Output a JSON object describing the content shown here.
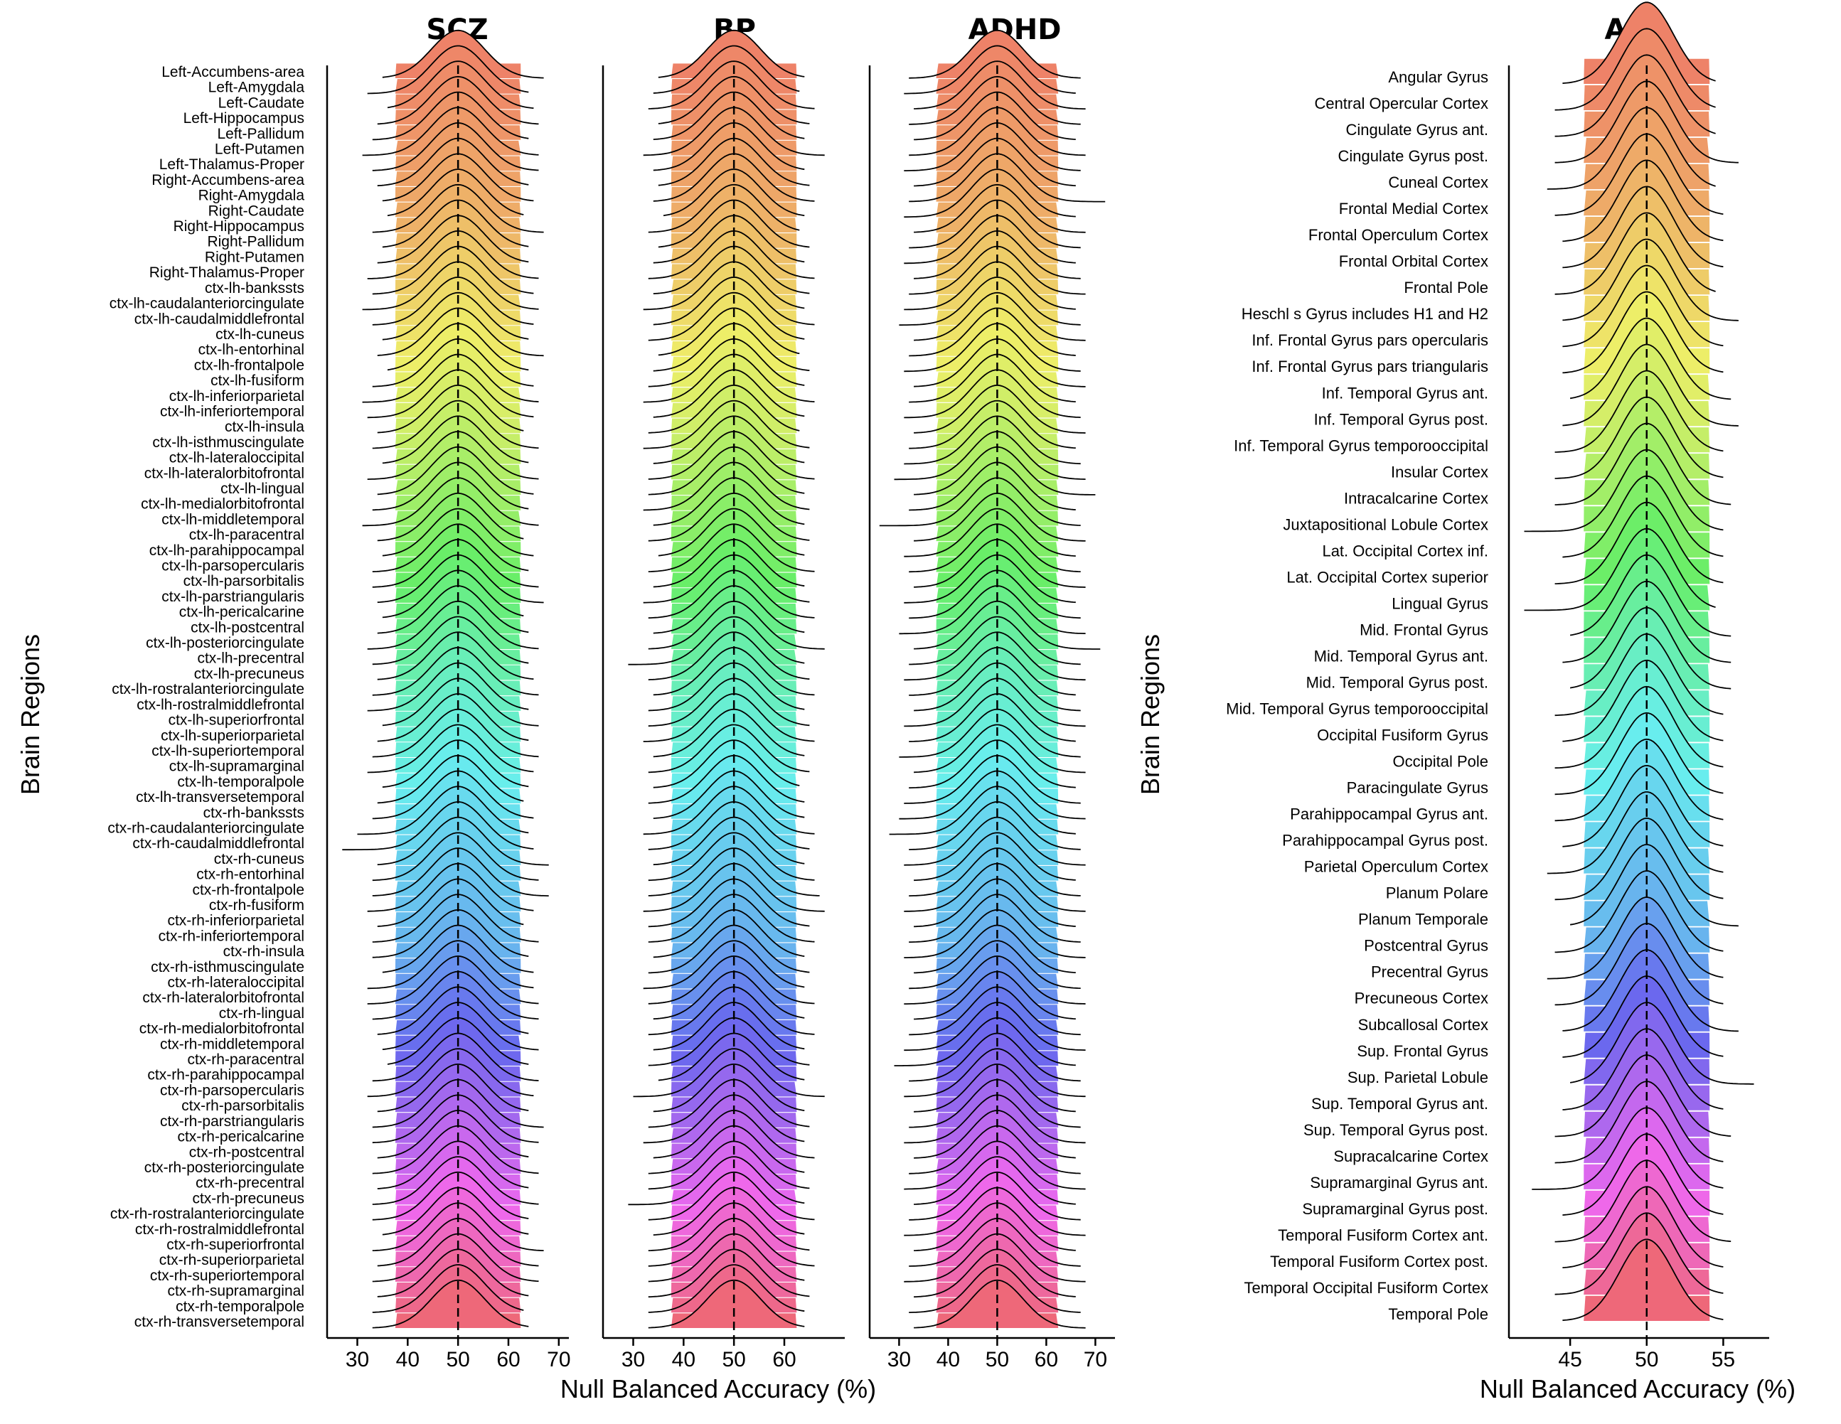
{
  "chart_data": [
    {
      "type": "ridgeline",
      "title": "SCZ",
      "xlabel": "Null Balanced Accuracy (%)",
      "ylabel": "Brain Regions",
      "xlim": [
        24,
        72
      ],
      "xticks": [
        30,
        40,
        50,
        60,
        70
      ],
      "mean_line": 50,
      "categories": [
        "Left-Accumbens-area",
        "Left-Amygdala",
        "Left-Caudate",
        "Left-Hippocampus",
        "Left-Pallidum",
        "Left-Putamen",
        "Left-Thalamus-Proper",
        "Right-Accumbens-area",
        "Right-Amygdala",
        "Right-Caudate",
        "Right-Hippocampus",
        "Right-Pallidum",
        "Right-Putamen",
        "Right-Thalamus-Proper",
        "ctx-lh-bankssts",
        "ctx-lh-caudalanteriorcingulate",
        "ctx-lh-caudalmiddlefrontal",
        "ctx-lh-cuneus",
        "ctx-lh-entorhinal",
        "ctx-lh-frontalpole",
        "ctx-lh-fusiform",
        "ctx-lh-inferiorparietal",
        "ctx-lh-inferiortemporal",
        "ctx-lh-insula",
        "ctx-lh-isthmuscingulate",
        "ctx-lh-lateraloccipital",
        "ctx-lh-lateralorbitofrontal",
        "ctx-lh-lingual",
        "ctx-lh-medialorbitofrontal",
        "ctx-lh-middletemporal",
        "ctx-lh-paracentral",
        "ctx-lh-parahippocampal",
        "ctx-lh-parsopercularis",
        "ctx-lh-parsorbitalis",
        "ctx-lh-parstriangularis",
        "ctx-lh-pericalcarine",
        "ctx-lh-postcentral",
        "ctx-lh-posteriorcingulate",
        "ctx-lh-precentral",
        "ctx-lh-precuneus",
        "ctx-lh-rostralanteriorcingulate",
        "ctx-lh-rostralmiddlefrontal",
        "ctx-lh-superiorfrontal",
        "ctx-lh-superiorparietal",
        "ctx-lh-superiortemporal",
        "ctx-lh-supramarginal",
        "ctx-lh-temporalpole",
        "ctx-lh-transversetemporal",
        "ctx-rh-bankssts",
        "ctx-rh-caudalanteriorcingulate",
        "ctx-rh-caudalmiddlefrontal",
        "ctx-rh-cuneus",
        "ctx-rh-entorhinal",
        "ctx-rh-frontalpole",
        "ctx-rh-fusiform",
        "ctx-rh-inferiorparietal",
        "ctx-rh-inferiortemporal",
        "ctx-rh-insula",
        "ctx-rh-isthmuscingulate",
        "ctx-rh-lateraloccipital",
        "ctx-rh-lateralorbitofrontal",
        "ctx-rh-lingual",
        "ctx-rh-medialorbitofrontal",
        "ctx-rh-middletemporal",
        "ctx-rh-paracentral",
        "ctx-rh-parahippocampal",
        "ctx-rh-parsopercularis",
        "ctx-rh-parsorbitalis",
        "ctx-rh-parstriangularis",
        "ctx-rh-pericalcarine",
        "ctx-rh-postcentral",
        "ctx-rh-posteriorcingulate",
        "ctx-rh-precentral",
        "ctx-rh-precuneus",
        "ctx-rh-rostralanteriorcingulate",
        "ctx-rh-rostralmiddlefrontal",
        "ctx-rh-superiorfrontal",
        "ctx-rh-superiorparietal",
        "ctx-rh-superiortemporal",
        "ctx-rh-supramarginal",
        "ctx-rh-temporalpole",
        "ctx-rh-transversetemporal"
      ],
      "center": 50,
      "sd": 5.3,
      "range_min": [
        35,
        32,
        36,
        34,
        33,
        31,
        33,
        34,
        35,
        36,
        33,
        35,
        34,
        32,
        33,
        31,
        33,
        35,
        34,
        36,
        33,
        31,
        32,
        34,
        33,
        35,
        32,
        34,
        33,
        31,
        34,
        35,
        33,
        33,
        34,
        35,
        34,
        32,
        33,
        34,
        33,
        32,
        35,
        34,
        33,
        32,
        35,
        34,
        33,
        30,
        27,
        34,
        33,
        33,
        32,
        34,
        33,
        33,
        35,
        32,
        32,
        33,
        34,
        35,
        36,
        33,
        32,
        34,
        33,
        33,
        34,
        33,
        34,
        33,
        33,
        35,
        33,
        34,
        33,
        34,
        33,
        33
      ],
      "range_max": [
        67,
        64,
        65,
        66,
        64,
        66,
        66,
        64,
        65,
        63,
        67,
        64,
        64,
        66,
        65,
        66,
        65,
        64,
        67,
        64,
        65,
        66,
        65,
        63,
        66,
        64,
        66,
        65,
        64,
        66,
        63,
        65,
        64,
        66,
        67,
        63,
        64,
        66,
        64,
        65,
        66,
        64,
        66,
        64,
        66,
        65,
        64,
        63,
        65,
        64,
        65,
        68,
        66,
        68,
        65,
        63,
        66,
        64,
        65,
        65,
        66,
        66,
        64,
        66,
        64,
        66,
        65,
        64,
        67,
        66,
        64,
        66,
        64,
        66,
        64,
        64,
        67,
        66,
        66,
        64,
        63,
        64
      ]
    },
    {
      "type": "ridgeline",
      "title": "BP",
      "xlabel": "",
      "ylabel": "",
      "xlim": [
        24,
        72
      ],
      "xticks": [
        30,
        40,
        50,
        60
      ],
      "mean_line": 50,
      "categories": [
        "Left-Accumbens-area",
        "Left-Amygdala",
        "Left-Caudate",
        "Left-Hippocampus",
        "Left-Pallidum",
        "Left-Putamen",
        "Left-Thalamus-Proper",
        "Right-Accumbens-area",
        "Right-Amygdala",
        "Right-Caudate",
        "Right-Hippocampus",
        "Right-Pallidum",
        "Right-Putamen",
        "Right-Thalamus-Proper",
        "ctx-lh-bankssts",
        "ctx-lh-caudalanteriorcingulate",
        "ctx-lh-caudalmiddlefrontal",
        "ctx-lh-cuneus",
        "ctx-lh-entorhinal",
        "ctx-lh-frontalpole",
        "ctx-lh-fusiform",
        "ctx-lh-inferiorparietal",
        "ctx-lh-inferiortemporal",
        "ctx-lh-insula",
        "ctx-lh-isthmuscingulate",
        "ctx-lh-lateraloccipital",
        "ctx-lh-lateralorbitofrontal",
        "ctx-lh-lingual",
        "ctx-lh-medialorbitofrontal",
        "ctx-lh-middletemporal",
        "ctx-lh-paracentral",
        "ctx-lh-parahippocampal",
        "ctx-lh-parsopercularis",
        "ctx-lh-parsorbitalis",
        "ctx-lh-parstriangularis",
        "ctx-lh-pericalcarine",
        "ctx-lh-postcentral",
        "ctx-lh-posteriorcingulate",
        "ctx-lh-precentral",
        "ctx-lh-precuneus",
        "ctx-lh-rostralanteriorcingulate",
        "ctx-lh-rostralmiddlefrontal",
        "ctx-lh-superiorfrontal",
        "ctx-lh-superiorparietal",
        "ctx-lh-superiortemporal",
        "ctx-lh-supramarginal",
        "ctx-lh-temporalpole",
        "ctx-lh-transversetemporal",
        "ctx-rh-bankssts",
        "ctx-rh-caudalanteriorcingulate",
        "ctx-rh-caudalmiddlefrontal",
        "ctx-rh-cuneus",
        "ctx-rh-entorhinal",
        "ctx-rh-frontalpole",
        "ctx-rh-fusiform",
        "ctx-rh-inferiorparietal",
        "ctx-rh-inferiortemporal",
        "ctx-rh-insula",
        "ctx-rh-isthmuscingulate",
        "ctx-rh-lateraloccipital",
        "ctx-rh-lateralorbitofrontal",
        "ctx-rh-lingual",
        "ctx-rh-medialorbitofrontal",
        "ctx-rh-middletemporal",
        "ctx-rh-paracentral",
        "ctx-rh-parahippocampal",
        "ctx-rh-parsopercularis",
        "ctx-rh-parsorbitalis",
        "ctx-rh-parstriangularis",
        "ctx-rh-pericalcarine",
        "ctx-rh-postcentral",
        "ctx-rh-posteriorcingulate",
        "ctx-rh-precentral",
        "ctx-rh-precuneus",
        "ctx-rh-rostralanteriorcingulate",
        "ctx-rh-rostralmiddlefrontal",
        "ctx-rh-superiorfrontal",
        "ctx-rh-superiorparietal",
        "ctx-rh-superiortemporal",
        "ctx-rh-supramarginal",
        "ctx-rh-temporalpole",
        "ctx-rh-transversetemporal"
      ],
      "center": 50,
      "sd": 5.3,
      "range_min": [
        35,
        34,
        33,
        35,
        34,
        32,
        34,
        35,
        34,
        36,
        33,
        35,
        34,
        33,
        34,
        32,
        34,
        33,
        35,
        34,
        33,
        32,
        34,
        33,
        32,
        34,
        33,
        33,
        32,
        34,
        33,
        35,
        33,
        34,
        32,
        33,
        34,
        33,
        29,
        33,
        34,
        33,
        33,
        32,
        34,
        33,
        34,
        33,
        34,
        32,
        33,
        34,
        33,
        33,
        32,
        33,
        33,
        34,
        33,
        32,
        33,
        34,
        33,
        34,
        33,
        35,
        30,
        34,
        33,
        32,
        34,
        33,
        33,
        29,
        33,
        34,
        33,
        33,
        33,
        33,
        33,
        33
      ],
      "range_max": [
        64,
        63,
        66,
        65,
        64,
        68,
        64,
        65,
        66,
        64,
        63,
        65,
        64,
        66,
        65,
        64,
        66,
        64,
        63,
        65,
        64,
        66,
        64,
        63,
        65,
        64,
        66,
        64,
        65,
        64,
        65,
        64,
        66,
        64,
        65,
        66,
        64,
        68,
        64,
        65,
        66,
        64,
        65,
        66,
        64,
        65,
        63,
        64,
        64,
        66,
        65,
        64,
        66,
        67,
        68,
        65,
        66,
        64,
        65,
        64,
        66,
        64,
        66,
        64,
        65,
        64,
        68,
        64,
        65,
        64,
        66,
        64,
        65,
        64,
        66,
        64,
        65,
        66,
        64,
        65,
        64,
        64
      ]
    },
    {
      "type": "ridgeline",
      "title": "ADHD",
      "xlabel": "",
      "ylabel": "",
      "xlim": [
        24,
        74
      ],
      "xticks": [
        30,
        40,
        50,
        60,
        70
      ],
      "mean_line": 50,
      "categories": [
        "Left-Accumbens-area",
        "Left-Amygdala",
        "Left-Caudate",
        "Left-Hippocampus",
        "Left-Pallidum",
        "Left-Putamen",
        "Left-Thalamus-Proper",
        "Right-Accumbens-area",
        "Right-Amygdala",
        "Right-Caudate",
        "Right-Hippocampus",
        "Right-Pallidum",
        "Right-Putamen",
        "Right-Thalamus-Proper",
        "ctx-lh-bankssts",
        "ctx-lh-caudalanteriorcingulate",
        "ctx-lh-caudalmiddlefrontal",
        "ctx-lh-cuneus",
        "ctx-lh-entorhinal",
        "ctx-lh-frontalpole",
        "ctx-lh-fusiform",
        "ctx-lh-inferiorparietal",
        "ctx-lh-inferiortemporal",
        "ctx-lh-insula",
        "ctx-lh-isthmuscingulate",
        "ctx-lh-lateraloccipital",
        "ctx-lh-lateralorbitofrontal",
        "ctx-lh-lingual",
        "ctx-lh-medialorbitofrontal",
        "ctx-lh-middletemporal",
        "ctx-lh-paracentral",
        "ctx-lh-parahippocampal",
        "ctx-lh-parsopercularis",
        "ctx-lh-parsorbitalis",
        "ctx-lh-parstriangularis",
        "ctx-lh-pericalcarine",
        "ctx-lh-postcentral",
        "ctx-lh-posteriorcingulate",
        "ctx-lh-precentral",
        "ctx-lh-precuneus",
        "ctx-lh-rostralanteriorcingulate",
        "ctx-lh-rostralmiddlefrontal",
        "ctx-lh-superiorfrontal",
        "ctx-lh-superiorparietal",
        "ctx-lh-superiortemporal",
        "ctx-lh-supramarginal",
        "ctx-lh-temporalpole",
        "ctx-lh-transversetemporal",
        "ctx-rh-bankssts",
        "ctx-rh-caudalanteriorcingulate",
        "ctx-rh-caudalmiddlefrontal",
        "ctx-rh-cuneus",
        "ctx-rh-entorhinal",
        "ctx-rh-frontalpole",
        "ctx-rh-fusiform",
        "ctx-rh-inferiorparietal",
        "ctx-rh-inferiortemporal",
        "ctx-rh-insula",
        "ctx-rh-isthmuscingulate",
        "ctx-rh-lateraloccipital",
        "ctx-rh-lateralorbitofrontal",
        "ctx-rh-lingual",
        "ctx-rh-medialorbitofrontal",
        "ctx-rh-middletemporal",
        "ctx-rh-paracentral",
        "ctx-rh-parahippocampal",
        "ctx-rh-parsopercularis",
        "ctx-rh-parsorbitalis",
        "ctx-rh-parstriangularis",
        "ctx-rh-pericalcarine",
        "ctx-rh-postcentral",
        "ctx-rh-posteriorcingulate",
        "ctx-rh-precentral",
        "ctx-rh-precuneus",
        "ctx-rh-rostralanteriorcingulate",
        "ctx-rh-rostralmiddlefrontal",
        "ctx-rh-superiorfrontal",
        "ctx-rh-superiorparietal",
        "ctx-rh-superiortemporal",
        "ctx-rh-supramarginal",
        "ctx-rh-temporalpole",
        "ctx-rh-transversetemporal"
      ],
      "center": 50,
      "sd": 5.3,
      "range_min": [
        32,
        31,
        33,
        32,
        33,
        32,
        31,
        33,
        32,
        31,
        33,
        32,
        31,
        33,
        32,
        31,
        30,
        33,
        32,
        31,
        33,
        32,
        31,
        33,
        32,
        31,
        29,
        33,
        32,
        26,
        33,
        31,
        32,
        33,
        31,
        32,
        30,
        33,
        32,
        31,
        32,
        33,
        31,
        32,
        30,
        33,
        32,
        31,
        30,
        28,
        32,
        31,
        33,
        32,
        31,
        33,
        32,
        31,
        33,
        32,
        31,
        33,
        32,
        31,
        29,
        32,
        31,
        33,
        32,
        31,
        33,
        32,
        31,
        33,
        32,
        31,
        33,
        32,
        31,
        33,
        32,
        33
      ],
      "range_max": [
        67,
        66,
        68,
        67,
        66,
        68,
        67,
        66,
        72,
        66,
        68,
        67,
        66,
        67,
        68,
        66,
        67,
        68,
        66,
        67,
        68,
        66,
        67,
        68,
        66,
        67,
        68,
        70,
        66,
        67,
        68,
        66,
        67,
        68,
        66,
        67,
        68,
        71,
        67,
        68,
        66,
        67,
        68,
        66,
        67,
        68,
        66,
        67,
        68,
        66,
        67,
        68,
        66,
        67,
        68,
        66,
        67,
        68,
        66,
        67,
        68,
        66,
        67,
        68,
        66,
        67,
        68,
        66,
        67,
        68,
        66,
        67,
        68,
        66,
        67,
        68,
        66,
        67,
        68,
        66,
        67,
        68
      ]
    },
    {
      "type": "ridgeline",
      "title": "ASD",
      "xlabel": "Null Balanced Accuracy (%)",
      "ylabel": "Brain Regions",
      "xlim": [
        41,
        58
      ],
      "xticks": [
        45,
        50,
        55
      ],
      "mean_line": 50,
      "categories": [
        "Angular Gyrus",
        "Central Opercular Cortex",
        "Cingulate Gyrus ant.",
        "Cingulate Gyrus post.",
        "Cuneal Cortex",
        "Frontal Medial Cortex",
        "Frontal Operculum Cortex",
        "Frontal Orbital Cortex",
        "Frontal Pole",
        "Heschl s Gyrus includes H1 and H2",
        "Inf. Frontal Gyrus pars opercularis",
        "Inf. Frontal Gyrus pars triangularis",
        "Inf. Temporal Gyrus ant.",
        "Inf. Temporal Gyrus post.",
        "Inf. Temporal Gyrus temporooccipital",
        "Insular Cortex",
        "Intracalcarine Cortex",
        "Juxtapositional Lobule Cortex",
        "Lat. Occipital Cortex inf.",
        "Lat. Occipital Cortex superior",
        "Lingual Gyrus",
        "Mid. Frontal Gyrus",
        "Mid. Temporal Gyrus ant.",
        "Mid. Temporal Gyrus post.",
        "Mid. Temporal Gyrus temporooccipital",
        "Occipital Fusiform Gyrus",
        "Occipital Pole",
        "Paracingulate Gyrus",
        "Parahippocampal Gyrus ant.",
        "Parahippocampal Gyrus post.",
        "Parietal Operculum Cortex",
        "Planum Polare",
        "Planum Temporale",
        "Postcentral Gyrus",
        "Precentral Gyrus",
        "Precuneous Cortex",
        "Subcallosal Cortex",
        "Sup. Frontal Gyrus",
        "Sup. Parietal Lobule",
        "Sup. Temporal Gyrus ant.",
        "Sup. Temporal Gyrus post.",
        "Supracalcarine Cortex",
        "Supramarginal Gyrus ant.",
        "Supramarginal Gyrus post.",
        "Temporal Fusiform Cortex ant.",
        "Temporal Fusiform Cortex post.",
        "Temporal Occipital Fusiform Cortex",
        "Temporal Pole"
      ],
      "center": 50,
      "sd": 1.75,
      "range_min": [
        44.5,
        44,
        44,
        44,
        43.5,
        44,
        44.5,
        44.5,
        44,
        44.5,
        44.5,
        44.5,
        45,
        44.5,
        44,
        44,
        44,
        42,
        44.5,
        44,
        42,
        45,
        44.5,
        45,
        44,
        44.5,
        44,
        44,
        44,
        44.5,
        43.5,
        44,
        45,
        44,
        43.5,
        44,
        44.5,
        44.5,
        45,
        44.5,
        44,
        44,
        42.5,
        44.5,
        44,
        44.5,
        44,
        44.5
      ],
      "range_max": [
        54.5,
        54.5,
        54.5,
        56,
        54.5,
        55,
        55,
        55,
        54.5,
        56,
        55,
        55,
        55.5,
        56,
        55,
        55,
        55.5,
        55,
        55,
        55,
        54.5,
        55.5,
        55.5,
        55.5,
        55,
        55,
        55,
        55,
        55,
        55,
        55,
        55,
        56,
        55,
        55,
        55,
        56,
        55,
        57,
        55,
        55.5,
        55,
        55,
        55,
        55.5,
        55,
        55,
        55
      ]
    }
  ]
}
